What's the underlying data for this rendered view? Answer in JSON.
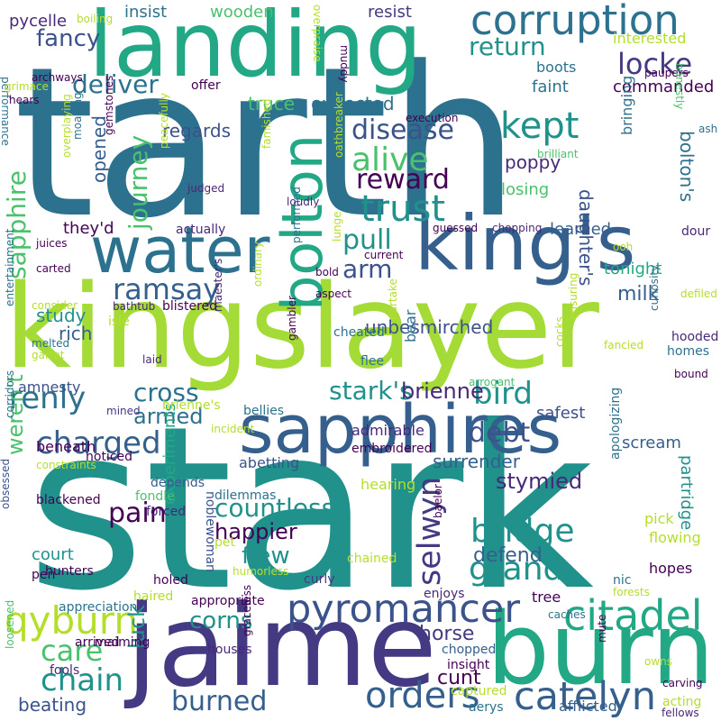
{
  "palette": {
    "background": "#ffffff",
    "light_green": "#a5db36",
    "lime": "#b5de2b",
    "green": "#4ac16d",
    "teal_green": "#22a884",
    "teal": "#1f9e89",
    "teal_blue": "#21918c",
    "steel_blue": "#2c728e",
    "slate_blue": "#355f8d",
    "indigo": "#3b528b",
    "dark_indigo": "#443983",
    "deep_purple": "#482878",
    "near_black_purple": "#440154"
  },
  "words": [
    {
      "text": "tarth",
      "color": "#2c728e"
    },
    {
      "text": "stark",
      "color": "#21918c"
    },
    {
      "text": "kingslayer",
      "color": "#a5db36"
    },
    {
      "text": "landing",
      "color": "#22a884"
    },
    {
      "text": "jaime",
      "color": "#443983"
    },
    {
      "text": "burn",
      "color": "#22a884"
    },
    {
      "text": "king's",
      "color": "#355f8d"
    },
    {
      "text": "sapphires",
      "color": "#355f8d"
    },
    {
      "text": "water",
      "color": "#2c728e"
    },
    {
      "text": "corruption",
      "color": "#2c728e"
    },
    {
      "text": "bolton",
      "color": "#22a884"
    },
    {
      "text": "pyromancer",
      "color": "#3b528b"
    },
    {
      "text": "citadel",
      "color": "#22a884"
    },
    {
      "text": "catelyn",
      "color": "#355f8d"
    },
    {
      "text": "qyburn",
      "color": "#b5de2b"
    },
    {
      "text": "grand",
      "color": "#21918c"
    },
    {
      "text": "bridge",
      "color": "#21918c"
    },
    {
      "text": "selwyn",
      "color": "#443983"
    },
    {
      "text": "countless",
      "color": "#21918c"
    },
    {
      "text": "trust",
      "color": "#21918c"
    },
    {
      "text": "alive",
      "color": "#4ac16d"
    },
    {
      "text": "reward",
      "color": "#440154"
    },
    {
      "text": "kept",
      "color": "#21918c"
    },
    {
      "text": "disease",
      "color": "#3b528b"
    },
    {
      "text": "locke",
      "color": "#443983"
    },
    {
      "text": "return",
      "color": "#21918c"
    },
    {
      "text": "fancy",
      "color": "#3b528b"
    },
    {
      "text": "deliver",
      "color": "#2c728e"
    },
    {
      "text": "journey",
      "color": "#4ac16d"
    },
    {
      "text": "sapphire",
      "color": "#4ac16d"
    },
    {
      "text": "renly",
      "color": "#2c728e"
    },
    {
      "text": "charged",
      "color": "#355f8d"
    },
    {
      "text": "ramsay",
      "color": "#355f8d"
    },
    {
      "text": "pull",
      "color": "#21918c"
    },
    {
      "text": "arm",
      "color": "#3b528b"
    },
    {
      "text": "stark's",
      "color": "#21918c"
    },
    {
      "text": "bird",
      "color": "#21918c"
    },
    {
      "text": "brienne",
      "color": "#482878"
    },
    {
      "text": "debt",
      "color": "#3b528b"
    },
    {
      "text": "cross",
      "color": "#2c728e"
    },
    {
      "text": "armed",
      "color": "#2c728e"
    },
    {
      "text": "pain",
      "color": "#440154"
    },
    {
      "text": "chain",
      "color": "#21918c"
    },
    {
      "text": "care",
      "color": "#4ac16d"
    },
    {
      "text": "orders",
      "color": "#355f8d"
    },
    {
      "text": "burned",
      "color": "#355f8d"
    },
    {
      "text": "corns",
      "color": "#21918c"
    },
    {
      "text": "weren't",
      "color": "#4ac16d"
    },
    {
      "text": "flew",
      "color": "#21918c"
    },
    {
      "text": "happier",
      "color": "#440154"
    },
    {
      "text": "stymied",
      "color": "#482878"
    },
    {
      "text": "surrender",
      "color": "#355f8d"
    },
    {
      "text": "defend",
      "color": "#355f8d"
    },
    {
      "text": "horse",
      "color": "#443983"
    },
    {
      "text": "luck",
      "color": "#21918c"
    },
    {
      "text": "beating",
      "color": "#3b528b"
    },
    {
      "text": "cunt",
      "color": "#440154"
    },
    {
      "text": "experiments",
      "color": "#22a884"
    },
    {
      "text": "court",
      "color": "#21918c"
    },
    {
      "text": "study",
      "color": "#21918c"
    },
    {
      "text": "rich",
      "color": "#355f8d"
    },
    {
      "text": "unbesmirched",
      "color": "#3b528b"
    },
    {
      "text": "milk",
      "color": "#355f8d"
    },
    {
      "text": "tonight",
      "color": "#22a884"
    },
    {
      "text": "learned",
      "color": "#355f8d"
    },
    {
      "text": "daughter's",
      "color": "#3b528b"
    },
    {
      "text": "bolton's",
      "color": "#2c728e"
    },
    {
      "text": "partridge",
      "color": "#21918c"
    },
    {
      "text": "scream",
      "color": "#355f8d"
    },
    {
      "text": "safest",
      "color": "#3b528b"
    },
    {
      "text": "losing",
      "color": "#4ac16d"
    },
    {
      "text": "poppy",
      "color": "#482878"
    },
    {
      "text": "opened",
      "color": "#355f8d"
    },
    {
      "text": "regards",
      "color": "#3b528b"
    },
    {
      "text": "they'd",
      "color": "#440154"
    },
    {
      "text": "truce",
      "color": "#4ac16d"
    },
    {
      "text": "expected",
      "color": "#2c728e"
    },
    {
      "text": "faint",
      "color": "#2c728e"
    },
    {
      "text": "commanded",
      "color": "#440154"
    },
    {
      "text": "boots",
      "color": "#2c728e"
    },
    {
      "text": "interested",
      "color": "#b5de2b"
    },
    {
      "text": "insist",
      "color": "#2c728e"
    },
    {
      "text": "wooden",
      "color": "#4ac16d"
    },
    {
      "text": "resist",
      "color": "#443983"
    },
    {
      "text": "pycelle",
      "color": "#482878"
    },
    {
      "text": "paupers",
      "color": "#440154"
    },
    {
      "text": "offer",
      "color": "#440154"
    },
    {
      "text": "actually",
      "color": "#482878"
    },
    {
      "text": "bringing",
      "color": "#2c728e"
    },
    {
      "text": "brienne's",
      "color": "#b5de2b"
    },
    {
      "text": "noticed",
      "color": "#440154"
    },
    {
      "text": "beneath",
      "color": "#440154"
    },
    {
      "text": "amnesty",
      "color": "#3b528b"
    },
    {
      "text": "admirable",
      "color": "#482878"
    },
    {
      "text": "abetting",
      "color": "#3b528b"
    },
    {
      "text": "depends",
      "color": "#355f8d"
    },
    {
      "text": "embroidered",
      "color": "#440154"
    },
    {
      "text": "hearing",
      "color": "#b5de2b"
    },
    {
      "text": "bellies",
      "color": "#2c728e"
    },
    {
      "text": "incident",
      "color": "#b5de2b"
    },
    {
      "text": "apologizing",
      "color": "#2c728e"
    },
    {
      "text": "constraints",
      "color": "#b5de2b"
    },
    {
      "text": "blackened",
      "color": "#440154"
    },
    {
      "text": "dilemmas",
      "color": "#2c728e"
    },
    {
      "text": "fondle",
      "color": "#4ac16d"
    },
    {
      "text": "forced",
      "color": "#482878"
    },
    {
      "text": "noblewoman",
      "color": "#3b528b"
    },
    {
      "text": "pet",
      "color": "#b5de2b"
    },
    {
      "text": "chained",
      "color": "#b5de2b"
    },
    {
      "text": "humorless",
      "color": "#b5de2b"
    },
    {
      "text": "curly",
      "color": "#443983"
    },
    {
      "text": "haired",
      "color": "#b5de2b"
    },
    {
      "text": "appropriate",
      "color": "#440154"
    },
    {
      "text": "enjoys",
      "color": "#482878"
    },
    {
      "text": "hunters",
      "color": "#440154"
    },
    {
      "text": "holed",
      "color": "#440154"
    },
    {
      "text": "pen",
      "color": "#440154"
    },
    {
      "text": "appreciation",
      "color": "#2c728e"
    },
    {
      "text": "arrived",
      "color": "#440154"
    },
    {
      "text": "maiming",
      "color": "#440154"
    },
    {
      "text": "houses",
      "color": "#482878"
    },
    {
      "text": "fools",
      "color": "#482878"
    },
    {
      "text": "loosened",
      "color": "#4ac16d"
    },
    {
      "text": "graceless",
      "color": "#440154"
    },
    {
      "text": "chopped",
      "color": "#355f8d"
    },
    {
      "text": "insight",
      "color": "#440154"
    },
    {
      "text": "captured",
      "color": "#b5de2b"
    },
    {
      "text": "aerys",
      "color": "#2c728e"
    },
    {
      "text": "afflicted",
      "color": "#355f8d"
    },
    {
      "text": "acting",
      "color": "#b5de2b"
    },
    {
      "text": "fellows",
      "color": "#482878"
    },
    {
      "text": "carving",
      "color": "#440154"
    },
    {
      "text": "owns",
      "color": "#b5de2b"
    },
    {
      "text": "mute",
      "color": "#440154"
    },
    {
      "text": "caches",
      "color": "#2c728e"
    },
    {
      "text": "forests",
      "color": "#b5de2b"
    },
    {
      "text": "nic",
      "color": "#2c728e"
    },
    {
      "text": "hopes",
      "color": "#440154"
    },
    {
      "text": "flowing",
      "color": "#b5de2b"
    },
    {
      "text": "pick",
      "color": "#b5de2b"
    },
    {
      "text": "tree",
      "color": "#440154"
    },
    {
      "text": "baelor",
      "color": "#440154"
    },
    {
      "text": "obsessed",
      "color": "#3b528b"
    },
    {
      "text": "corridors",
      "color": "#2c728e"
    },
    {
      "text": "mined",
      "color": "#443983"
    },
    {
      "text": "laid",
      "color": "#482878"
    },
    {
      "text": "garret",
      "color": "#b5de2b"
    },
    {
      "text": "melted",
      "color": "#2c728e"
    },
    {
      "text": "blistered",
      "color": "#440154"
    },
    {
      "text": "bathtub",
      "color": "#482878"
    },
    {
      "text": "consider",
      "color": "#b5de2b"
    },
    {
      "text": "entertainment",
      "color": "#2c728e"
    },
    {
      "text": "isle",
      "color": "#b5de2b"
    },
    {
      "text": "ordinary",
      "color": "#b5de2b"
    },
    {
      "text": "aspect",
      "color": "#440154"
    },
    {
      "text": "bold",
      "color": "#440154"
    },
    {
      "text": "maester's",
      "color": "#482878"
    },
    {
      "text": "gambler",
      "color": "#440154"
    },
    {
      "text": "cheated",
      "color": "#2c728e"
    },
    {
      "text": "flee",
      "color": "#2c728e"
    },
    {
      "text": "partake",
      "color": "#b5de2b"
    },
    {
      "text": "bear",
      "color": "#2c728e"
    },
    {
      "text": "arrogant",
      "color": "#4ac16d"
    },
    {
      "text": "cocks",
      "color": "#b5de2b"
    },
    {
      "text": "ensuring",
      "color": "#b5de2b"
    },
    {
      "text": "curiosity",
      "color": "#2c728e"
    },
    {
      "text": "fancied",
      "color": "#b5de2b"
    },
    {
      "text": "homes",
      "color": "#2c728e"
    },
    {
      "text": "hooded",
      "color": "#482878"
    },
    {
      "text": "bound",
      "color": "#440154"
    },
    {
      "text": "defiled",
      "color": "#b5de2b"
    },
    {
      "text": "dour",
      "color": "#482878"
    },
    {
      "text": "ooh",
      "color": "#b5de2b"
    },
    {
      "text": "lunge",
      "color": "#b5de2b"
    },
    {
      "text": "performed",
      "color": "#2c728e"
    },
    {
      "text": "current",
      "color": "#440154"
    },
    {
      "text": "guessed",
      "color": "#440154"
    },
    {
      "text": "chopping",
      "color": "#482878"
    },
    {
      "text": "carted",
      "color": "#440154"
    },
    {
      "text": "juices",
      "color": "#440154"
    },
    {
      "text": "judged",
      "color": "#482878"
    },
    {
      "text": "loudly",
      "color": "#482878"
    },
    {
      "text": "oathbreaker",
      "color": "#b5de2b"
    },
    {
      "text": "famished",
      "color": "#b5de2b"
    },
    {
      "text": "peacefully",
      "color": "#b5de2b"
    },
    {
      "text": "brilliant",
      "color": "#4ac16d"
    },
    {
      "text": "gemstones",
      "color": "#440154"
    },
    {
      "text": "moaning",
      "color": "#2c728e"
    },
    {
      "text": "overplaying",
      "color": "#b5de2b"
    },
    {
      "text": "execution",
      "color": "#440154"
    },
    {
      "text": "honestly",
      "color": "#4ac16d"
    },
    {
      "text": "ash",
      "color": "#2c728e"
    },
    {
      "text": "performance",
      "color": "#2c728e"
    },
    {
      "text": "hears",
      "color": "#440154"
    },
    {
      "text": "grimace",
      "color": "#b5de2b"
    },
    {
      "text": "archways",
      "color": "#440154"
    },
    {
      "text": "boiling",
      "color": "#b5de2b"
    },
    {
      "text": "overpraise",
      "color": "#b5de2b"
    },
    {
      "text": "muddy",
      "color": "#440154"
    },
    {
      "text": "stones",
      "color": "#482878"
    }
  ]
}
